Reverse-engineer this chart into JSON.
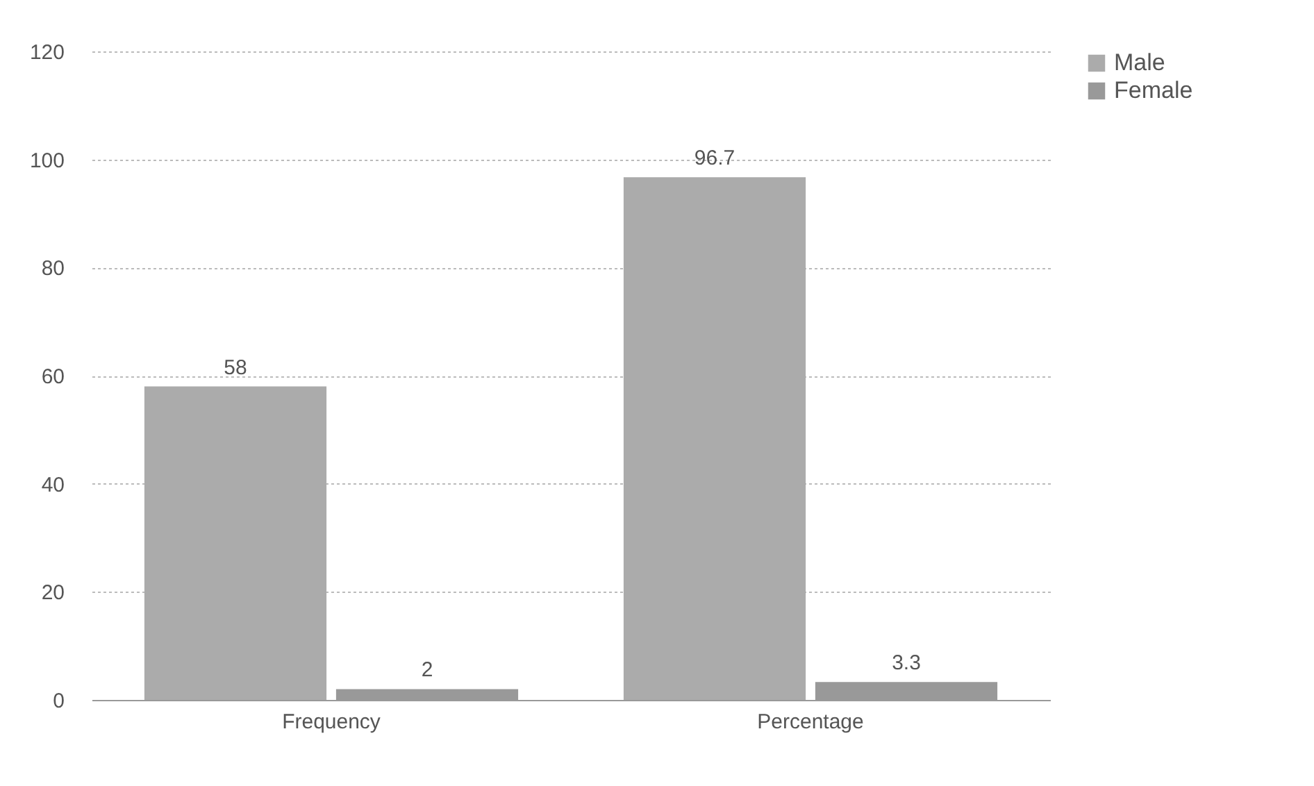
{
  "chart_data": {
    "type": "bar",
    "categories": [
      "Frequency",
      "Percentage"
    ],
    "series": [
      {
        "name": "Male",
        "color": "#ababab",
        "values": [
          58,
          96.7
        ]
      },
      {
        "name": "Female",
        "color": "#999999",
        "values": [
          2,
          3.3
        ]
      }
    ],
    "ylim": [
      0,
      120
    ],
    "yticks": [
      0,
      20,
      40,
      60,
      80,
      100,
      120
    ],
    "grid": "y",
    "legend": "right",
    "data_labels": true
  }
}
